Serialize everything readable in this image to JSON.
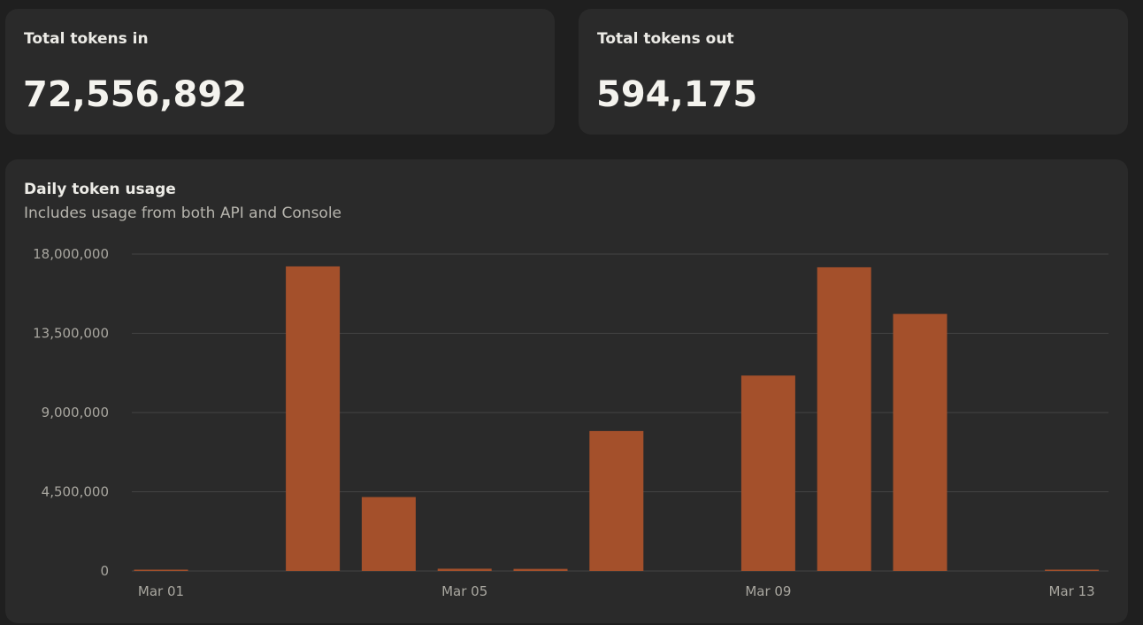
{
  "stats": {
    "tokens_in": {
      "label": "Total tokens in",
      "value": "72,556,892"
    },
    "tokens_out": {
      "label": "Total tokens out",
      "value": "594,175"
    }
  },
  "chart_data": {
    "type": "bar",
    "title": "Daily token usage",
    "subtitle": "Includes usage from both API and Console",
    "categories": [
      "Mar 01",
      "Mar 02",
      "Mar 03",
      "Mar 04",
      "Mar 05",
      "Mar 06",
      "Mar 07",
      "Mar 08",
      "Mar 09",
      "Mar 10",
      "Mar 11",
      "Mar 12",
      "Mar 13"
    ],
    "values": [
      40000,
      0,
      17300000,
      4200000,
      130000,
      120000,
      7950000,
      0,
      11100000,
      17250000,
      14600000,
      0,
      30000
    ],
    "x_tick_labels": [
      "Mar 01",
      "Mar 05",
      "Mar 09",
      "Mar 13"
    ],
    "y_ticks": [
      0,
      4500000,
      9000000,
      13500000,
      18000000
    ],
    "y_tick_labels": [
      "0",
      "4,500,000",
      "9,000,000",
      "13,500,000",
      "18,000,000"
    ],
    "ylim": [
      0,
      18000000
    ],
    "grid": true,
    "bar_color": "#a4502b",
    "grid_color": "#444444"
  }
}
